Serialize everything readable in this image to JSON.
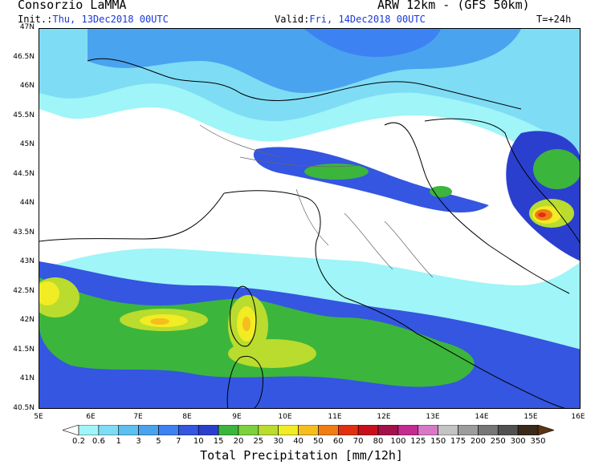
{
  "header": {
    "org": "Consorzio LaMMA",
    "model": "ARW 12km  - (GFS 50km)",
    "init_label": "Init.:",
    "init_value": "Thu, 13Dec2018 00UTC",
    "valid_label": "Valid:",
    "valid_value": "Fri, 14Dec2018 00UTC",
    "lead": "T=+24h"
  },
  "map": {
    "lat_labels": [
      "47N",
      "46.5N",
      "46N",
      "45.5N",
      "45N",
      "44.5N",
      "44N",
      "43.5N",
      "43N",
      "42.5N",
      "42N",
      "41.5N",
      "41N",
      "40.5N"
    ],
    "lon_labels": [
      "5E",
      "6E",
      "7E",
      "8E",
      "9E",
      "10E",
      "11E",
      "12E",
      "13E",
      "14E",
      "15E",
      "16E"
    ],
    "lat_range": [
      40.5,
      47
    ],
    "lon_range": [
      5,
      16
    ]
  },
  "legend": {
    "title": "Total Precipitation [mm/12h]",
    "levels": [
      "0.2",
      "0.6",
      "1",
      "3",
      "5",
      "7",
      "10",
      "15",
      "20",
      "25",
      "30",
      "40",
      "50",
      "60",
      "70",
      "80",
      "100",
      "125",
      "150",
      "175",
      "200",
      "250",
      "300",
      "350"
    ],
    "colors": [
      "#ffffff",
      "#9ff5f7",
      "#7fdcf5",
      "#5cc0f0",
      "#49a3ef",
      "#3d82f2",
      "#3456e0",
      "#2b3fcf",
      "#3cb53c",
      "#7cd13c",
      "#b9dc2e",
      "#f1ec23",
      "#f5be1d",
      "#f07d14",
      "#e03010",
      "#c8101c",
      "#a3104a",
      "#c42a90",
      "#d877c8",
      "#c3c3c3",
      "#9c9c9c",
      "#767676",
      "#515151",
      "#3a2a1a",
      "#5a3512"
    ]
  }
}
